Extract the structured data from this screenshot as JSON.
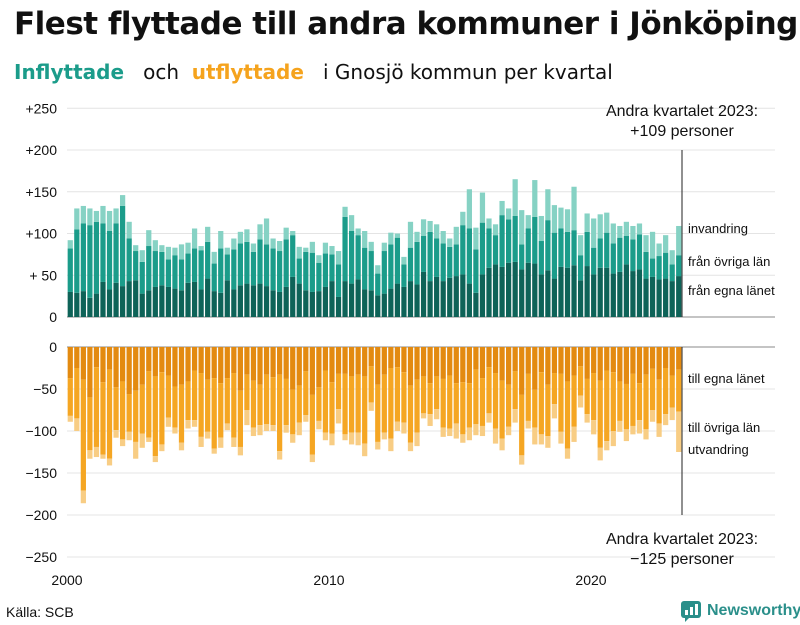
{
  "title": "Flest flyttade till andra kommuner i Jönköping",
  "subtitle": {
    "word1": "Inflyttade",
    "word2": "och",
    "word3": "utflyttade",
    "rest": "i Gnosjö  kommun  per  kvartal"
  },
  "source": "Källa: SCB",
  "brand": "Newsworthy",
  "colors": {
    "in_egna": "#0e6358",
    "in_ovriga": "#1b9c8a",
    "in_invandring": "#86d2c4",
    "out_egna": "#e38a10",
    "out_ovriga": "#f5a623",
    "out_utvandring": "#f8cd84",
    "text_in": "#1b9c8a",
    "text_out": "#f5a31d"
  },
  "chart_data": {
    "type": "bar",
    "stacked": true,
    "title": "Flest flyttade till andra kommuner i Jönköping",
    "xlabel": "",
    "ylabel": "",
    "x_ticks": [
      "2000",
      "2010",
      "2020"
    ],
    "top_ticks": [
      "+250",
      "+200",
      "+150",
      "+100",
      "+ 50",
      "0"
    ],
    "top_tick_values": [
      250,
      200,
      150,
      100,
      50,
      0
    ],
    "bottom_ticks": [
      "0",
      "−50",
      "−100",
      "−150",
      "−200",
      "−250"
    ],
    "bottom_tick_values": [
      0,
      -50,
      -100,
      -150,
      -200,
      -250
    ],
    "ylim_top": [
      0,
      250
    ],
    "ylim_bottom": [
      -250,
      0
    ],
    "categories": [
      "2000K1",
      "2000K2",
      "2000K3",
      "2000K4",
      "2001K1",
      "2001K2",
      "2001K3",
      "2001K4",
      "2002K1",
      "2002K2",
      "2002K3",
      "2002K4",
      "2003K1",
      "2003K2",
      "2003K3",
      "2003K4",
      "2004K1",
      "2004K2",
      "2004K3",
      "2004K4",
      "2005K1",
      "2005K2",
      "2005K3",
      "2005K4",
      "2006K1",
      "2006K2",
      "2006K3",
      "2006K4",
      "2007K1",
      "2007K2",
      "2007K3",
      "2007K4",
      "2008K1",
      "2008K2",
      "2008K3",
      "2008K4",
      "2009K1",
      "2009K2",
      "2009K3",
      "2009K4",
      "2010K1",
      "2010K2",
      "2010K3",
      "2010K4",
      "2011K1",
      "2011K2",
      "2011K3",
      "2011K4",
      "2012K1",
      "2012K2",
      "2012K3",
      "2012K4",
      "2013K1",
      "2013K2",
      "2013K3",
      "2013K4",
      "2014K1",
      "2014K2",
      "2014K3",
      "2014K4",
      "2015K1",
      "2015K2",
      "2015K3",
      "2015K4",
      "2016K1",
      "2016K2",
      "2016K3",
      "2016K4",
      "2017K1",
      "2017K2",
      "2017K3",
      "2017K4",
      "2018K1",
      "2018K2",
      "2018K3",
      "2018K4",
      "2019K1",
      "2019K2",
      "2019K3",
      "2019K4",
      "2020K1",
      "2020K2",
      "2020K3",
      "2020K4",
      "2021K1",
      "2021K2",
      "2021K3",
      "2021K4",
      "2022K1",
      "2022K2",
      "2022K3",
      "2022K4",
      "2023K1",
      "2023K2"
    ],
    "inflow_series": [
      {
        "name": "från egna länet",
        "values": [
          30,
          29,
          31,
          23,
          28,
          42,
          33,
          41,
          37,
          43,
          44,
          28,
          32,
          36,
          38,
          36,
          34,
          32,
          41,
          42,
          33,
          46,
          31,
          29,
          44,
          33,
          38,
          40,
          38,
          40,
          37,
          32,
          30,
          36,
          48,
          40,
          32,
          30,
          31,
          36,
          43,
          24,
          43,
          40,
          45,
          33,
          32,
          26,
          28,
          34,
          40,
          36,
          43,
          39,
          54,
          43,
          48,
          43,
          47,
          49,
          51,
          40,
          29,
          51,
          59,
          63,
          60,
          65,
          66,
          57,
          65,
          64,
          51,
          56,
          46,
          60,
          59,
          62,
          44,
          61,
          51,
          59,
          59,
          52,
          54,
          63,
          55,
          57,
          46,
          48,
          45,
          46,
          43,
          49
        ]
      },
      {
        "name": "från övriga län",
        "values": [
          52,
          76,
          81,
          87,
          86,
          70,
          70,
          71,
          96,
          51,
          35,
          38,
          53,
          43,
          40,
          33,
          40,
          37,
          35,
          40,
          47,
          44,
          33,
          53,
          31,
          48,
          50,
          50,
          40,
          53,
          50,
          50,
          49,
          57,
          50,
          30,
          46,
          47,
          34,
          40,
          32,
          39,
          77,
          63,
          53,
          50,
          47,
          26,
          51,
          53,
          55,
          27,
          40,
          51,
          43,
          59,
          46,
          45,
          37,
          38,
          59,
          66,
          52,
          62,
          47,
          35,
          62,
          52,
          55,
          30,
          41,
          56,
          40,
          60,
          55,
          46,
          43,
          42,
          30,
          41,
          32,
          35,
          42,
          36,
          41,
          34,
          38,
          42,
          32,
          22,
          28,
          31,
          20,
          25
        ]
      },
      {
        "name": "invandring",
        "values": [
          10,
          25,
          21,
          20,
          13,
          21,
          24,
          18,
          13,
          20,
          7,
          14,
          19,
          13,
          8,
          15,
          9,
          18,
          13,
          24,
          5,
          18,
          14,
          21,
          8,
          13,
          14,
          15,
          10,
          18,
          31,
          12,
          12,
          14,
          5,
          14,
          5,
          13,
          9,
          13,
          10,
          16,
          12,
          19,
          8,
          20,
          11,
          10,
          10,
          14,
          5,
          9,
          31,
          12,
          20,
          13,
          17,
          15,
          10,
          21,
          16,
          47,
          26,
          36,
          12,
          13,
          17,
          13,
          44,
          41,
          16,
          44,
          30,
          37,
          33,
          25,
          27,
          52,
          24,
          22,
          35,
          29,
          24,
          24,
          14,
          17,
          16,
          13,
          20,
          32,
          15,
          21,
          17,
          35
        ]
      }
    ],
    "outflow_series": [
      {
        "name": "till egna länet",
        "values": [
          -37,
          -25,
          -39,
          -60,
          -24,
          -42,
          -27,
          -48,
          -41,
          -56,
          -52,
          -45,
          -29,
          -35,
          -30,
          -34,
          -47,
          -45,
          -41,
          -28,
          -31,
          -39,
          -37,
          -43,
          -37,
          -31,
          -52,
          -33,
          -40,
          -45,
          -33,
          -36,
          -33,
          -38,
          -51,
          -46,
          -29,
          -57,
          -48,
          -28,
          -42,
          -32,
          -32,
          -35,
          -33,
          -35,
          -23,
          -45,
          -33,
          -25,
          -24,
          -30,
          -46,
          -39,
          -35,
          -43,
          -35,
          -38,
          -34,
          -43,
          -42,
          -43,
          -27,
          -37,
          -24,
          -31,
          -40,
          -45,
          -29,
          -57,
          -32,
          -51,
          -30,
          -45,
          -31,
          -32,
          -41,
          -34,
          -23,
          -38,
          -31,
          -40,
          -28,
          -30,
          -41,
          -44,
          -32,
          -43,
          -33,
          -26,
          -39,
          -25,
          -34,
          -27
        ]
      },
      {
        "name": "till övriga län",
        "values": [
          -45,
          -60,
          -132,
          -63,
          -95,
          -86,
          -106,
          -51,
          -69,
          -45,
          -61,
          -58,
          -79,
          -95,
          -86,
          -50,
          -49,
          -69,
          -46,
          -59,
          -76,
          -62,
          -84,
          -65,
          -54,
          -77,
          -67,
          -42,
          -56,
          -48,
          -59,
          -57,
          -91,
          -55,
          -53,
          -44,
          -52,
          -71,
          -40,
          -74,
          -61,
          -42,
          -72,
          -67,
          -69,
          -80,
          -43,
          -68,
          -69,
          -84,
          -65,
          -60,
          -68,
          -63,
          -44,
          -37,
          -39,
          -58,
          -63,
          -48,
          -62,
          -53,
          -65,
          -57,
          -55,
          -66,
          -69,
          -50,
          -45,
          -72,
          -56,
          -45,
          -74,
          -61,
          -37,
          -69,
          -80,
          -61,
          -35,
          -42,
          -56,
          -80,
          -84,
          -70,
          -47,
          -54,
          -62,
          -44,
          -65,
          -49,
          -52,
          -55,
          -38,
          -50
        ]
      },
      {
        "name": "utvandring",
        "values": [
          -7,
          -15,
          -15,
          -10,
          -12,
          -5,
          -8,
          -9,
          -8,
          -10,
          -20,
          -17,
          -5,
          -7,
          -8,
          -11,
          -7,
          -9,
          -10,
          -8,
          -12,
          -8,
          -6,
          -12,
          -8,
          -11,
          -10,
          -18,
          -10,
          -12,
          -8,
          -7,
          -10,
          -9,
          -10,
          -15,
          -8,
          -9,
          -10,
          -9,
          -14,
          -17,
          -7,
          -14,
          -15,
          -15,
          -10,
          -9,
          -8,
          -15,
          -11,
          -13,
          -10,
          -16,
          -6,
          -14,
          -12,
          -11,
          -9,
          -18,
          -10,
          -15,
          -13,
          -12,
          -11,
          -18,
          -14,
          -10,
          -16,
          -11,
          -9,
          -20,
          -12,
          -14,
          -17,
          -14,
          -12,
          -18,
          -14,
          -10,
          -17,
          -15,
          -11,
          -18,
          -13,
          -14,
          -10,
          -16,
          -12,
          -14,
          -16,
          -13,
          -15,
          -48
        ]
      }
    ],
    "series_labels_in": [
      "invandring",
      "från övriga län",
      "från egna länet"
    ],
    "series_labels_out": [
      "till egna länet",
      "till övriga län",
      "utvandring"
    ],
    "annotation_top": [
      "Andra kvartalet 2023:",
      "+109 personer"
    ],
    "annotation_bottom": [
      "Andra kvartalet 2023:",
      "−125 personer"
    ]
  }
}
